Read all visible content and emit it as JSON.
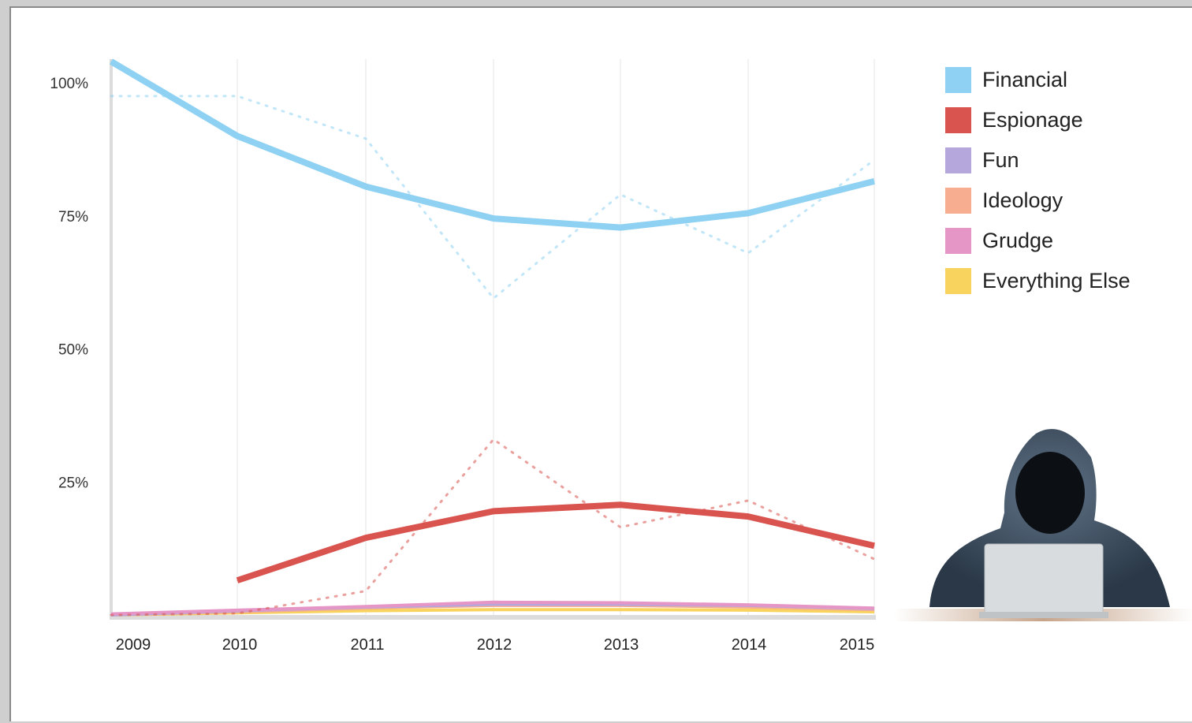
{
  "chart_data": {
    "type": "line",
    "title": "",
    "xlabel": "",
    "ylabel": "",
    "x": [
      "2009",
      "2010",
      "2011",
      "2012",
      "2013",
      "2014",
      "2015"
    ],
    "x_tick_labels": [
      "2009",
      "2010",
      "2011",
      "2012",
      "2013",
      "2014",
      "2015"
    ],
    "y_tick_labels": [
      "100%",
      "75%",
      "50%",
      "25%"
    ],
    "y_tick_values": [
      100,
      75,
      50,
      25
    ],
    "ylim": [
      0,
      104
    ],
    "grid": "vertical",
    "legend_position": "right",
    "series": [
      {
        "name": "Financial",
        "color": "#8ed1f2",
        "values": [
          104,
          90,
          80.5,
          74.5,
          72.8,
          75.5,
          81.5
        ],
        "raw_values": [
          97.5,
          97.5,
          89.5,
          59.5,
          79,
          68,
          85.5
        ]
      },
      {
        "name": "Espionage",
        "color": "#d9534f",
        "values": [
          null,
          6.5,
          14.5,
          19.5,
          20.7,
          18.5,
          13
        ],
        "raw_values": [
          0,
          0.3,
          4.5,
          33,
          16.5,
          21.5,
          10.5
        ]
      },
      {
        "name": "Fun",
        "color": "#b5a7dc",
        "values": [
          0,
          0.8,
          1.5,
          2,
          2,
          1.8,
          1.2
        ],
        "raw_values": null
      },
      {
        "name": "Ideology",
        "color": "#f7ad90",
        "values": [
          0,
          0.6,
          1.3,
          1.8,
          1.8,
          1.5,
          1.0
        ],
        "raw_values": null
      },
      {
        "name": "Grudge",
        "color": "#e596c6",
        "values": [
          0.2,
          0.9,
          1.6,
          2.4,
          2.3,
          1.9,
          1.3
        ],
        "raw_values": null
      },
      {
        "name": "Everything Else",
        "color": "#f8d35e",
        "values": [
          0,
          0.4,
          0.8,
          1.0,
          1.0,
          0.9,
          0.6
        ],
        "raw_values": null
      }
    ]
  },
  "image": {
    "description": "hooded figure at laptop",
    "icon": "hacker-illustration"
  }
}
